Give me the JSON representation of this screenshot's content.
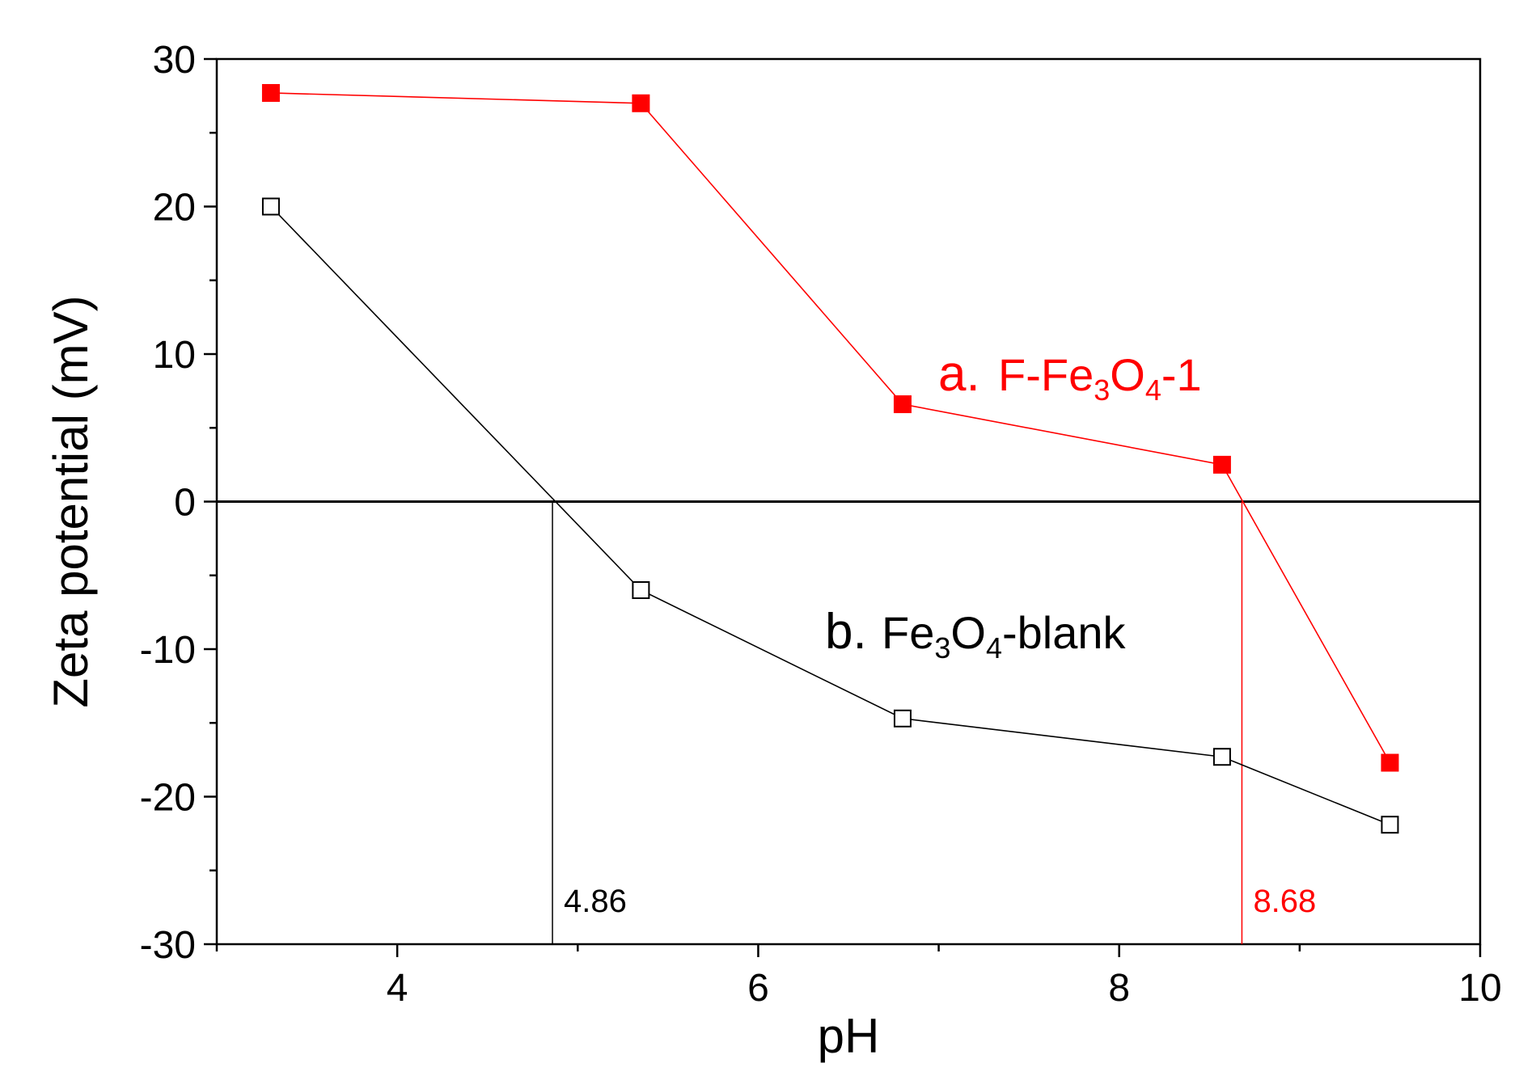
{
  "chart_data": {
    "type": "line",
    "xlabel": "pH",
    "ylabel": "Zeta potential (mV)",
    "xlim": [
      3,
      10
    ],
    "ylim": [
      -30,
      30
    ],
    "x_ticks": [
      4,
      6,
      8,
      10
    ],
    "y_ticks": [
      -30,
      -20,
      -10,
      0,
      10,
      20,
      30
    ],
    "x_tick_labels": [
      "4",
      "6",
      "8",
      "10"
    ],
    "y_tick_labels": [
      "-30",
      "-20",
      "-10",
      "0",
      "10",
      "20",
      "30"
    ],
    "grid": false,
    "zero_line": true,
    "series": [
      {
        "name": "a. F-Fe3O4-1",
        "label_prefix": "a.",
        "label_parts": [
          {
            "text": "F-Fe",
            "sub": false
          },
          {
            "text": "3",
            "sub": true
          },
          {
            "text": "O",
            "sub": false
          },
          {
            "text": "4",
            "sub": true
          },
          {
            "text": "-1",
            "sub": false
          }
        ],
        "color": "#ff0000",
        "marker": "filled-square",
        "x": [
          3.3,
          5.35,
          6.8,
          8.57,
          9.5
        ],
        "y": [
          27.7,
          27.0,
          6.6,
          2.5,
          -17.7
        ]
      },
      {
        "name": "b. Fe3O4-blank",
        "label_prefix": "b.",
        "label_parts": [
          {
            "text": "Fe",
            "sub": false
          },
          {
            "text": "3",
            "sub": true
          },
          {
            "text": "O",
            "sub": false
          },
          {
            "text": "4",
            "sub": true
          },
          {
            "text": "-blank",
            "sub": false
          }
        ],
        "color": "#000000",
        "marker": "open-square",
        "x": [
          3.3,
          5.35,
          6.8,
          8.57,
          9.5
        ],
        "y": [
          20.0,
          -6.0,
          -14.7,
          -17.3,
          -21.9
        ]
      }
    ],
    "annotations": [
      {
        "text": "4.86",
        "x": 4.86,
        "color": "#000000"
      },
      {
        "text": "8.68",
        "x": 8.68,
        "color": "#ff0000"
      }
    ]
  }
}
